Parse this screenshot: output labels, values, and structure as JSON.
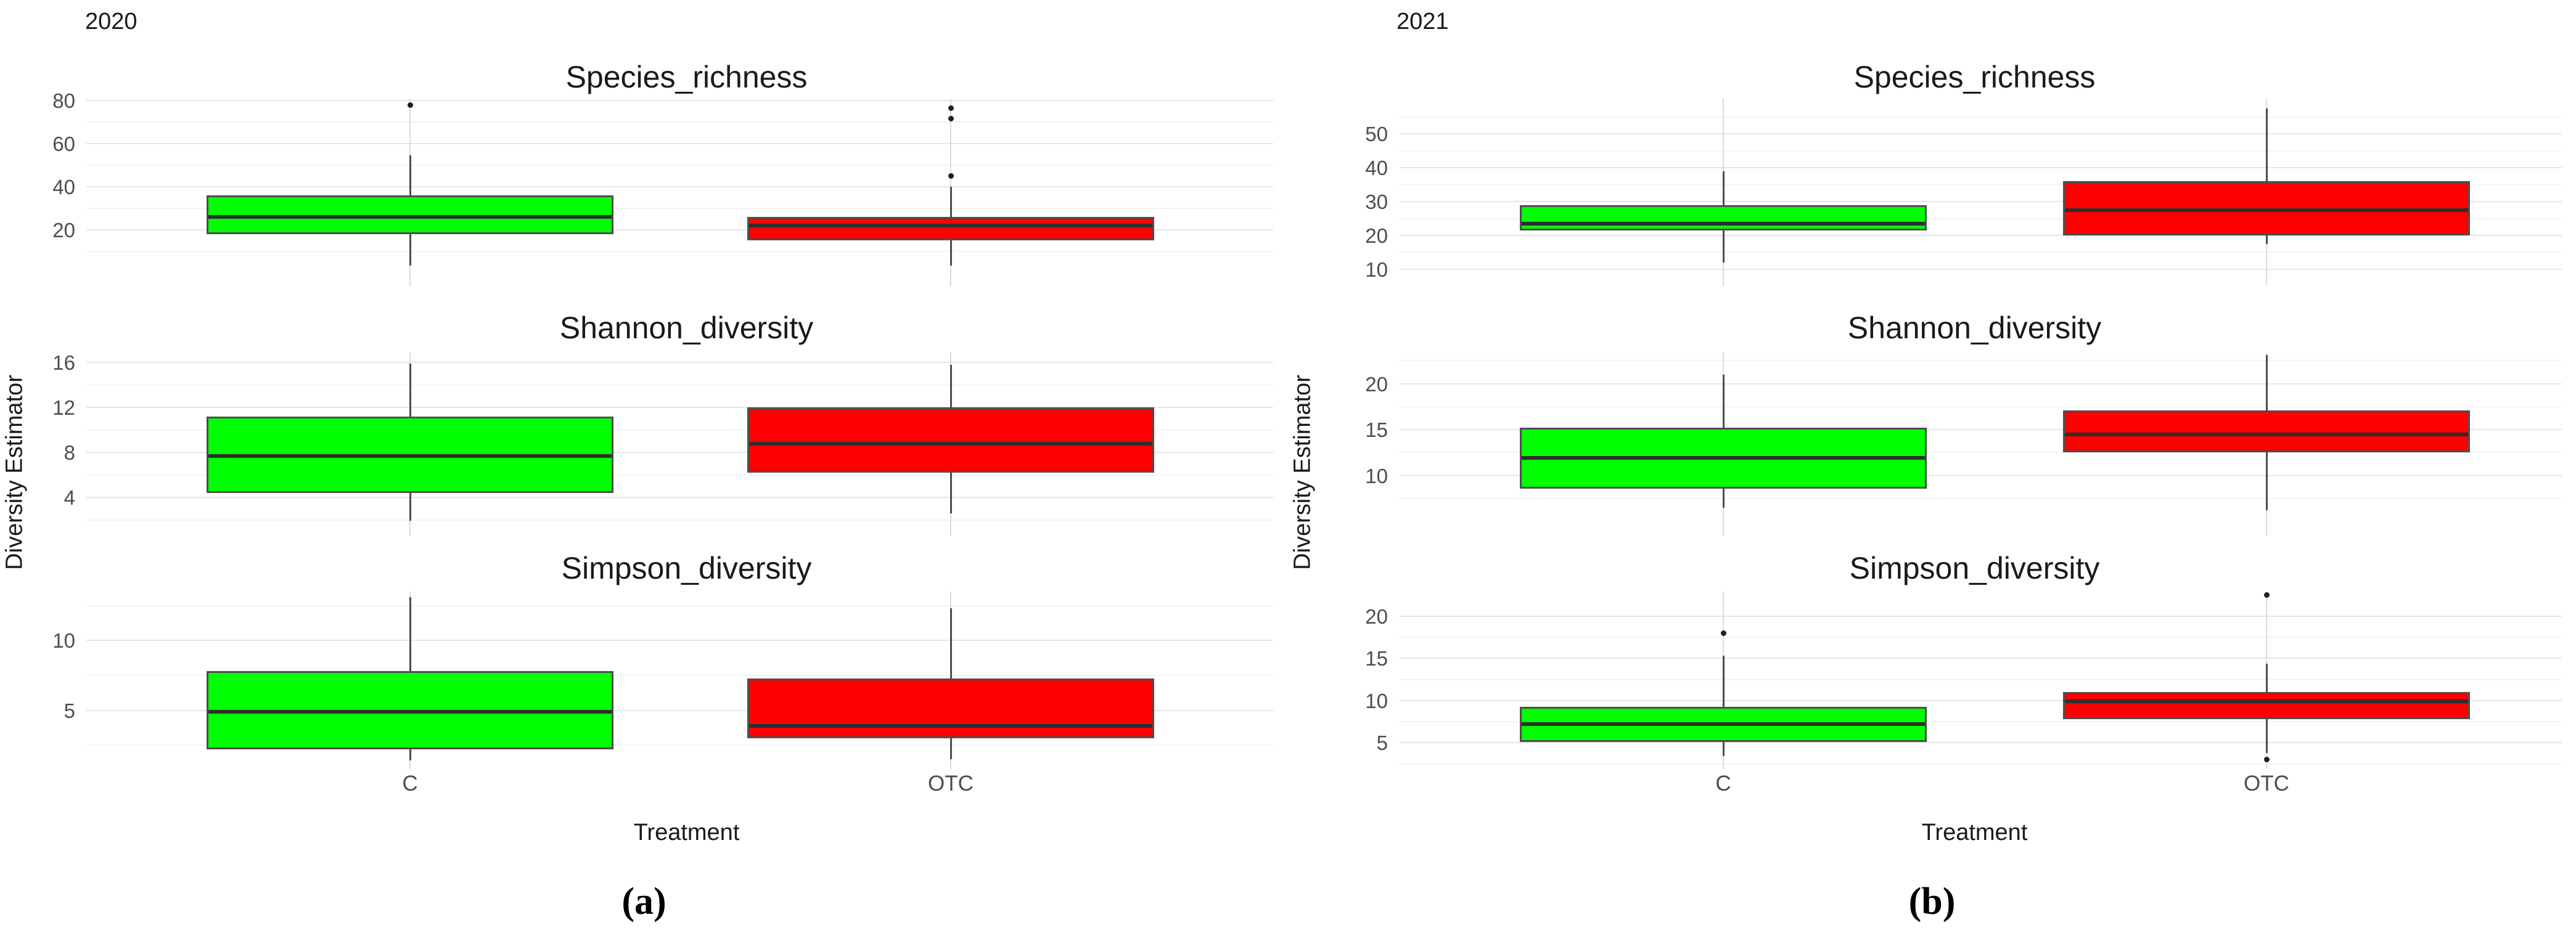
{
  "colors": {
    "c_fill": "#00ff00",
    "otc_fill": "#ff0000",
    "box_border": "#4d4d4d",
    "median": "#2e2e2e",
    "whisker": "#4d4d4d",
    "outlier": "#1f1f1f",
    "grid_major": "#e6e6e6",
    "grid_minor": "#f3f3f3",
    "cat_gridline": "#dcdcdc",
    "tick_text": "#4d4d4d",
    "title_text": "#1a1a1a",
    "background": "#ffffff"
  },
  "chart_data": {
    "type": "boxplot",
    "figure_description": "Diversity estimators (boxplots) by treatment, faceted by metric; panel (a) year 2020, panel (b) year 2021",
    "axis": {
      "x_label": "Treatment",
      "y_label": "Diversity Estimator",
      "categories": [
        "C",
        "OTC"
      ]
    },
    "series_colors": {
      "C": "#00ff00",
      "OTC": "#ff0000"
    },
    "panels": [
      {
        "id": "a",
        "year": "2020",
        "caption": "(a)",
        "facets": [
          {
            "title": "Species_richness",
            "ylim": [
              -6.3,
              80.9
            ],
            "ticks": [
              20,
              40,
              60,
              80
            ],
            "minor_ticks": [
              10,
              30,
              50,
              70
            ],
            "groups": [
              {
                "category": "C",
                "min": 3.5,
                "q1": 18,
                "median": 26,
                "q3": 36,
                "max": 54.5,
                "outliers": [
                  78
                ]
              },
              {
                "category": "OTC",
                "min": 3.5,
                "q1": 15,
                "median": 22,
                "q3": 26,
                "max": 40,
                "outliers": [
                  76.5,
                  71.5,
                  45
                ]
              }
            ]
          },
          {
            "title": "Shannon_diversity",
            "ylim": [
              0.55,
              16.9
            ],
            "ticks": [
              4,
              8,
              12,
              16
            ],
            "minor_ticks": [
              2,
              6,
              10,
              14
            ],
            "groups": [
              {
                "category": "C",
                "min": 1.9,
                "q1": 4.4,
                "median": 7.7,
                "q3": 11.2,
                "max": 15.9,
                "outliers": []
              },
              {
                "category": "OTC",
                "min": 2.6,
                "q1": 6.2,
                "median": 8.8,
                "q3": 12.0,
                "max": 15.8,
                "outliers": []
              }
            ]
          },
          {
            "title": "Simpson_diversity",
            "ylim": [
              0.8,
              13.5
            ],
            "ticks": [
              5,
              10
            ],
            "minor_ticks": [
              2.5,
              7.5,
              12.5
            ],
            "groups": [
              {
                "category": "C",
                "min": 1.4,
                "q1": 2.2,
                "median": 4.9,
                "q3": 7.8,
                "max": 13.1,
                "outliers": []
              },
              {
                "category": "OTC",
                "min": 1.5,
                "q1": 3.0,
                "median": 3.9,
                "q3": 7.3,
                "max": 12.3,
                "outliers": []
              }
            ]
          }
        ]
      },
      {
        "id": "b",
        "year": "2021",
        "caption": "(b)",
        "facets": [
          {
            "title": "Species_richness",
            "ylim": [
              4.9,
              60.4
            ],
            "ticks": [
              10,
              20,
              30,
              40,
              50
            ],
            "minor_ticks": [
              15,
              25,
              35,
              45,
              55
            ],
            "groups": [
              {
                "category": "C",
                "min": 12,
                "q1": 21.5,
                "median": 23.5,
                "q3": 29,
                "max": 39,
                "outliers": []
              },
              {
                "category": "OTC",
                "min": 17.5,
                "q1": 20,
                "median": 27.5,
                "q3": 36,
                "max": 57.5,
                "outliers": []
              }
            ]
          },
          {
            "title": "Shannon_diversity",
            "ylim": [
              3.4,
              23.4
            ],
            "ticks": [
              10,
              15,
              20
            ],
            "minor_ticks": [
              7.5,
              12.5,
              17.5,
              22.5
            ],
            "groups": [
              {
                "category": "C",
                "min": 6.5,
                "q1": 8.6,
                "median": 11.9,
                "q3": 15.2,
                "max": 21.0,
                "outliers": []
              },
              {
                "category": "OTC",
                "min": 6.2,
                "q1": 12.5,
                "median": 14.5,
                "q3": 17.1,
                "max": 23.1,
                "outliers": []
              }
            ]
          },
          {
            "title": "Simpson_diversity",
            "ylim": [
              1.9,
              22.9
            ],
            "ticks": [
              5,
              10,
              15,
              20
            ],
            "minor_ticks": [
              2.5,
              7.5,
              12.5,
              17.5
            ],
            "groups": [
              {
                "category": "C",
                "min": 3.4,
                "q1": 5.1,
                "median": 7.2,
                "q3": 9.3,
                "max": 15.3,
                "outliers": [
                  18
                ]
              },
              {
                "category": "OTC",
                "min": 3.8,
                "q1": 7.8,
                "median": 9.9,
                "q3": 11.0,
                "max": 14.4,
                "outliers": [
                  22.5,
                  3.0
                ]
              }
            ]
          }
        ]
      }
    ]
  }
}
